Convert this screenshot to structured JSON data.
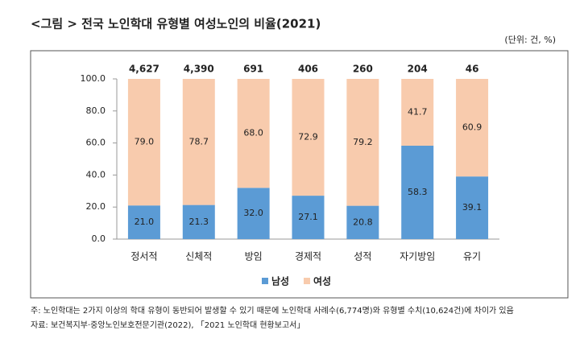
{
  "chart_data": {
    "type": "stacked_bar",
    "title": "<그림   > 전국 노인학대 유형별 여성노인의 비율(2021)",
    "unit_note": "(단위: 건, %)",
    "categories": [
      "정서적",
      "신체적",
      "방임",
      "경제적",
      "성적",
      "자기방임",
      "유기"
    ],
    "series": [
      {
        "name": "남성",
        "color": "#5b9bd5",
        "values": [
          21.0,
          21.3,
          32.0,
          27.1,
          20.8,
          58.3,
          39.1
        ],
        "value_labels": [
          "21.0",
          "21.3",
          "32.0",
          "27.1",
          "20.8",
          "58.3",
          "39.1"
        ]
      },
      {
        "name": "여성",
        "color": "#f8cbad",
        "values": [
          79.0,
          78.7,
          68.0,
          72.9,
          79.2,
          41.7,
          60.9
        ],
        "value_labels": [
          "79.0",
          "78.7",
          "68.0",
          "72.9",
          "79.2",
          "41.7",
          "60.9"
        ]
      }
    ],
    "totals": {
      "values": [
        4627,
        4390,
        691,
        406,
        260,
        204,
        46
      ],
      "value_labels": [
        "4,627",
        "4,390",
        "691",
        "406",
        "260",
        "204",
        "46"
      ]
    },
    "ylim": [
      0,
      100
    ],
    "yticks": [
      {
        "value": 0,
        "label": "0.0"
      },
      {
        "value": 20,
        "label": "20.0"
      },
      {
        "value": 40,
        "label": "40.0"
      },
      {
        "value": 60,
        "label": "60.0"
      },
      {
        "value": 80,
        "label": "80.0"
      },
      {
        "value": 100,
        "label": "100.0"
      }
    ],
    "legend": "bottom",
    "notes": [
      "주: 노인학대는 2가지 이상의 학대 유형이 동반되어 발생할 수 있기 때문에 노인학대 사례수(6,774명)와 유형별 수치(10,624건)에 차이가 있음",
      "자료: 보건복지부·중앙노인보호전문기관(2022), 「2021 노인학대 현황보고서」"
    ]
  }
}
